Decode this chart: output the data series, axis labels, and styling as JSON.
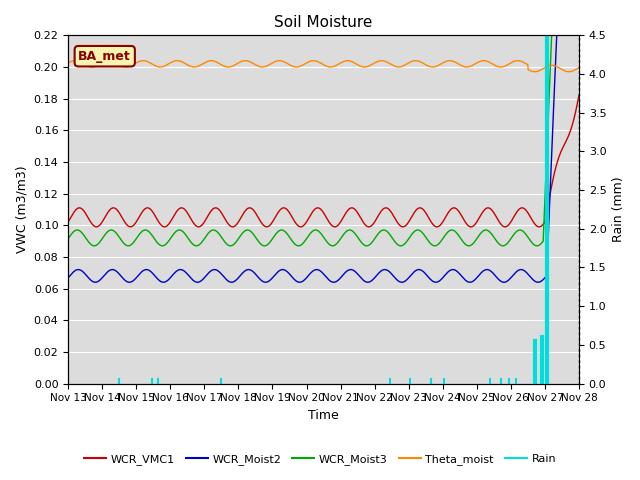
{
  "title": "Soil Moisture",
  "ylabel_left": "VWC (m3/m3)",
  "ylabel_right": "Rain (mm)",
  "xlabel": "Time",
  "ylim_left": [
    0.0,
    0.22
  ],
  "ylim_right": [
    0.0,
    4.5
  ],
  "xlim": [
    0,
    15.0
  ],
  "bg_color": "#dcdcdc",
  "fig_color": "#ffffff",
  "station_label": "BA_met",
  "station_label_color": "#8B0000",
  "station_label_bg": "#f5f5b0",
  "station_label_border": "#8B0000",
  "colors": {
    "WCR_VMC1": "#cc0000",
    "WCR_Moist2": "#0000cc",
    "WCR_Moist3": "#00aa00",
    "Theta_moist": "#ff8800",
    "Rain": "#00dddd"
  },
  "n_days": 15,
  "theta_base": 0.202,
  "theta_amp": 0.002,
  "vcr1_base": 0.105,
  "vcr1_amp": 0.006,
  "moist2_base": 0.068,
  "moist2_amp": 0.004,
  "moist3_base": 0.092,
  "moist3_amp": 0.005,
  "small_rain_days": [
    1.5,
    2.45,
    2.65,
    4.5,
    9.45,
    10.05,
    10.65,
    11.05,
    12.4,
    12.7,
    12.95,
    13.15
  ],
  "small_rain_val": 0.06,
  "xtick_labels": [
    "Nov 13",
    "Nov 14",
    "Nov 15",
    "Nov 16",
    "Nov 17",
    "Nov 18",
    "Nov 19",
    "Nov 20",
    "Nov 21",
    "Nov 22",
    "Nov 23",
    "Nov 24",
    "Nov 25",
    "Nov 26",
    "Nov 27",
    "Nov 28"
  ],
  "xtick_positions": [
    0,
    1,
    2,
    3,
    4,
    5,
    6,
    7,
    8,
    9,
    10,
    11,
    12,
    13,
    14,
    15
  ]
}
